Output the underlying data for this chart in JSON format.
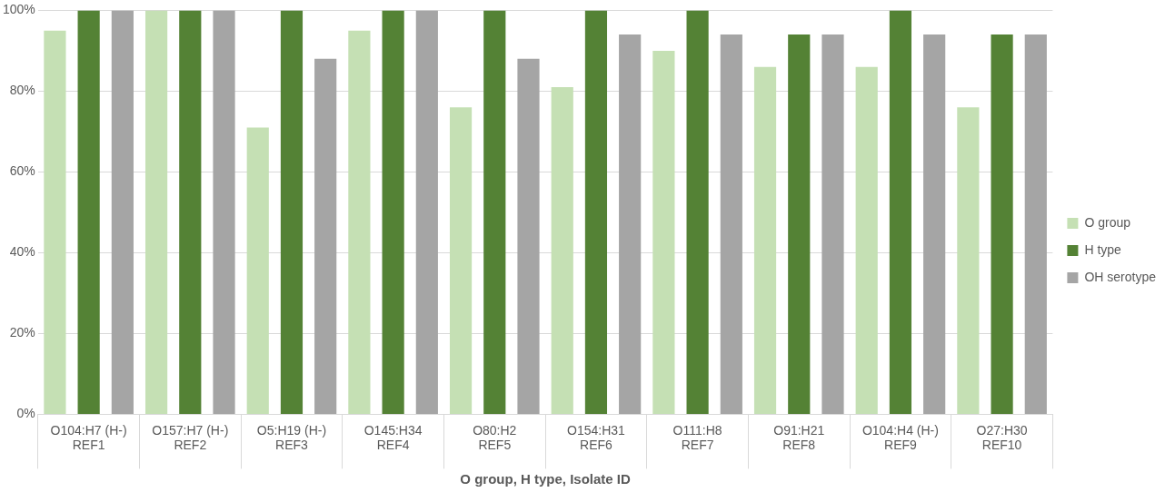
{
  "chart_data": {
    "type": "bar",
    "xlabel": "O group, H type, Isolate ID",
    "categories": [
      "O104:H7 (H-)\nREF1",
      "O157:H7 (H-)\nREF2",
      "O5:H19 (H-)\nREF3",
      "O145:H34\nREF4",
      "O80:H2\nREF5",
      "O154:H31\nREF6",
      "O111:H8\nREF7",
      "O91:H21\nREF8",
      "O104:H4 (H-)\nREF9",
      "O27:H30\nREF10"
    ],
    "series": [
      {
        "name": "O group",
        "color": "#c5e0b4",
        "values": [
          95,
          100,
          71,
          95,
          76,
          81,
          90,
          86,
          86,
          76
        ]
      },
      {
        "name": "H type",
        "color": "#548235",
        "values": [
          100,
          100,
          100,
          100,
          100,
          100,
          100,
          94,
          100,
          94
        ]
      },
      {
        "name": "OH serotype",
        "color": "#a5a5a5",
        "values": [
          100,
          100,
          88,
          100,
          88,
          94,
          94,
          94,
          94,
          94
        ]
      }
    ],
    "ylim": [
      0,
      100
    ],
    "yticks": [
      {
        "value": 0,
        "label": "0%"
      },
      {
        "value": 20,
        "label": "20%"
      },
      {
        "value": 40,
        "label": "40%"
      },
      {
        "value": 60,
        "label": "60%"
      },
      {
        "value": 80,
        "label": "80%"
      },
      {
        "value": 100,
        "label": "100%"
      }
    ],
    "grid": "y",
    "legend": "right"
  }
}
